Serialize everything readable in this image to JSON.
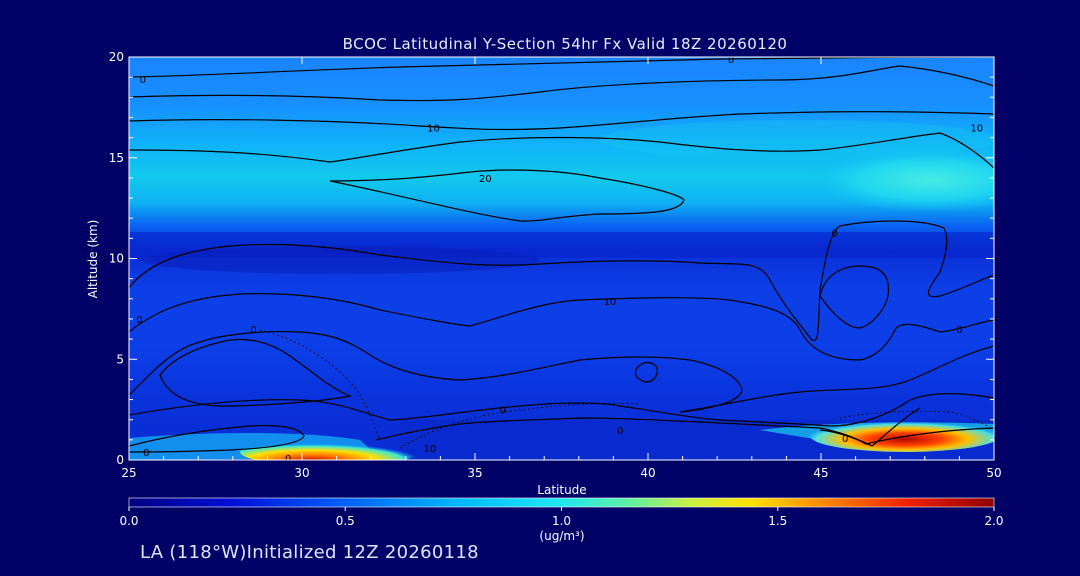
{
  "chart_data": {
    "type": "heatmap",
    "title": "BCOC Latitudinal Y-Section 54hr  Fx Valid 18Z 20260120",
    "xlabel": "Latitude",
    "ylabel": "Altitude (km)",
    "xlim": [
      25,
      50
    ],
    "ylim": [
      0,
      20
    ],
    "x_ticks": [
      25,
      30,
      35,
      40,
      45,
      50
    ],
    "y_ticks": [
      0,
      5,
      10,
      15,
      20
    ],
    "colorbar": {
      "min": 0.0,
      "max": 2.0,
      "ticks": [
        "0.0",
        "0.5",
        "1.0",
        "1.5",
        "2.0"
      ],
      "unit_label": "(ug/m³)"
    },
    "contour_labels": [
      {
        "text": "0",
        "lat": 25.4,
        "alt": 18.9
      },
      {
        "text": "0",
        "lat": 42.4,
        "alt": 19.9
      },
      {
        "text": "10",
        "lat": 33.8,
        "alt": 16.5
      },
      {
        "text": "20",
        "lat": 35.3,
        "alt": 14.0
      },
      {
        "text": "10",
        "lat": 49.5,
        "alt": 16.5
      },
      {
        "text": "0",
        "lat": 45.4,
        "alt": 11.3
      },
      {
        "text": "10",
        "lat": 38.9,
        "alt": 7.9
      },
      {
        "text": "0",
        "lat": 25.3,
        "alt": 7.0
      },
      {
        "text": "0",
        "lat": 28.6,
        "alt": 6.5
      },
      {
        "text": "0",
        "lat": 49.0,
        "alt": 6.5
      },
      {
        "text": "0",
        "lat": 35.8,
        "alt": 2.5
      },
      {
        "text": "0",
        "lat": 39.2,
        "alt": 1.5
      },
      {
        "text": "10",
        "lat": 33.7,
        "alt": 0.6
      },
      {
        "text": "0",
        "lat": 25.5,
        "alt": 0.4
      },
      {
        "text": "0",
        "lat": 29.6,
        "alt": 0.1
      },
      {
        "text": "0",
        "lat": 45.7,
        "alt": 1.1
      }
    ]
  },
  "footer_text": "LA (118°W)Initialized 12Z 20260118",
  "colors": {
    "background": "#000066",
    "axis": "#ffffff",
    "contour": "#000000"
  }
}
